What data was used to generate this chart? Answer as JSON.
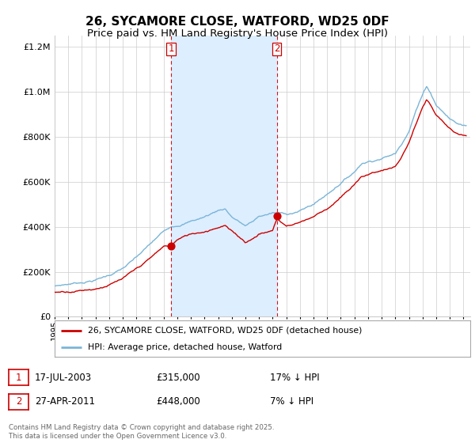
{
  "title": "26, SYCAMORE CLOSE, WATFORD, WD25 0DF",
  "subtitle": "Price paid vs. HM Land Registry's House Price Index (HPI)",
  "legend_line1": "26, SYCAMORE CLOSE, WATFORD, WD25 0DF (detached house)",
  "legend_line2": "HPI: Average price, detached house, Watford",
  "sale1_date": "17-JUL-2003",
  "sale1_price": "£315,000",
  "sale1_note": "17% ↓ HPI",
  "sale1_year": 2003.54,
  "sale1_value": 315000,
  "sale2_date": "27-APR-2011",
  "sale2_price": "£448,000",
  "sale2_note": "7% ↓ HPI",
  "sale2_year": 2011.32,
  "sale2_value": 448000,
  "hpi_color": "#7ab5d8",
  "price_color": "#cc0000",
  "shade_color": "#ddeeff",
  "vline_color": "#cc0000",
  "background_color": "#ffffff",
  "ylim_min": 0,
  "ylim_max": 1250000,
  "footer": "Contains HM Land Registry data © Crown copyright and database right 2025.\nThis data is licensed under the Open Government Licence v3.0.",
  "title_fontsize": 11,
  "subtitle_fontsize": 9.5,
  "hpi_anchors_t": [
    1995.0,
    1996.0,
    1997.0,
    1998.0,
    1999.0,
    2000.0,
    2001.0,
    2002.0,
    2003.0,
    2003.5,
    2004.0,
    2005.0,
    2006.0,
    2007.0,
    2007.5,
    2008.0,
    2009.0,
    2009.5,
    2010.0,
    2011.0,
    2012.0,
    2013.0,
    2014.0,
    2015.0,
    2016.0,
    2017.0,
    2017.5,
    2018.0,
    2019.0,
    2020.0,
    2020.5,
    2021.0,
    2021.5,
    2022.0,
    2022.3,
    2022.5,
    2023.0,
    2023.5,
    2024.0,
    2024.5,
    2025.0
  ],
  "hpi_anchors_v": [
    135000,
    145000,
    155000,
    168000,
    190000,
    220000,
    265000,
    320000,
    375000,
    400000,
    410000,
    430000,
    450000,
    480000,
    490000,
    455000,
    415000,
    430000,
    455000,
    470000,
    465000,
    480000,
    510000,
    555000,
    610000,
    660000,
    700000,
    710000,
    730000,
    750000,
    800000,
    860000,
    950000,
    1020000,
    1060000,
    1040000,
    980000,
    950000,
    920000,
    900000,
    890000
  ],
  "price_anchors_t": [
    1995.0,
    1996.0,
    1997.0,
    1998.0,
    1999.0,
    2000.0,
    2001.0,
    2002.0,
    2003.0,
    2003.54,
    2004.0,
    2005.0,
    2006.0,
    2007.0,
    2007.5,
    2008.0,
    2009.0,
    2009.5,
    2010.0,
    2011.0,
    2011.32,
    2012.0,
    2013.0,
    2014.0,
    2015.0,
    2016.0,
    2017.0,
    2017.5,
    2018.0,
    2019.0,
    2020.0,
    2020.5,
    2021.0,
    2021.5,
    2022.0,
    2022.3,
    2022.5,
    2023.0,
    2023.5,
    2024.0,
    2024.5,
    2025.0
  ],
  "price_anchors_v": [
    108000,
    116000,
    125000,
    135000,
    155000,
    178000,
    215000,
    260000,
    310000,
    315000,
    340000,
    365000,
    380000,
    405000,
    415000,
    385000,
    340000,
    355000,
    380000,
    395000,
    448000,
    415000,
    435000,
    462000,
    500000,
    550000,
    600000,
    640000,
    650000,
    670000,
    685000,
    730000,
    790000,
    870000,
    940000,
    975000,
    960000,
    900000,
    870000,
    840000,
    810000,
    800000
  ]
}
